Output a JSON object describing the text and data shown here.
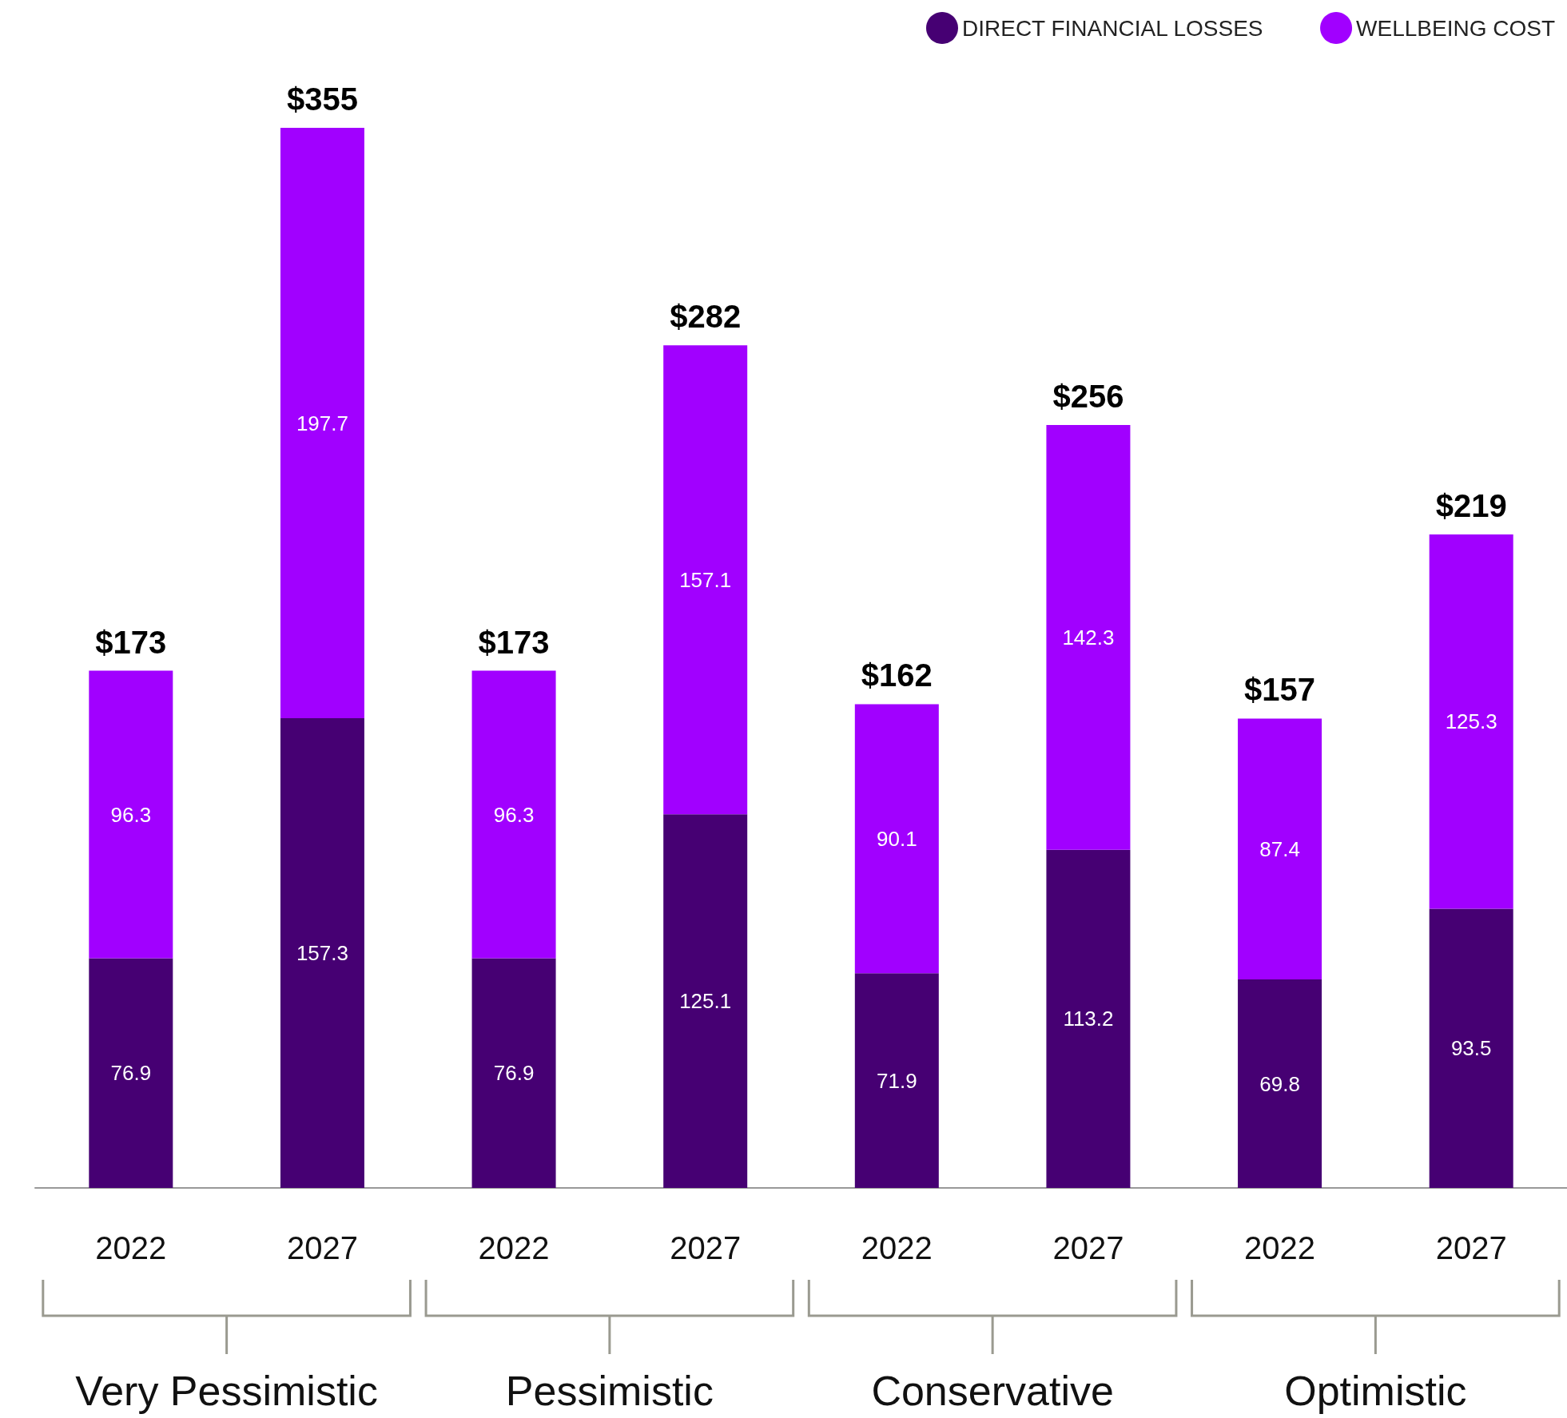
{
  "chart_data": {
    "type": "bar",
    "stacked": true,
    "categories": [
      "2022",
      "2027",
      "2022",
      "2027",
      "2022",
      "2027",
      "2022",
      "2027"
    ],
    "series": [
      {
        "name": "DIRECT FINANCIAL LOSSES",
        "color": "#460073",
        "values": [
          76.9,
          157.3,
          76.9,
          125.1,
          71.9,
          113.2,
          69.8,
          93.5
        ]
      },
      {
        "name": "WELLBEING COST",
        "color": "#a100ff",
        "values": [
          96.3,
          197.7,
          96.3,
          157.1,
          90.1,
          142.3,
          87.4,
          125.3
        ]
      }
    ],
    "data_labels": true,
    "totals": [
      "$173",
      "$355",
      "$173",
      "$282",
      "$162",
      "$256",
      "$157",
      "$219"
    ],
    "annotations": [
      "Very Pessimistic",
      "Pessimistic",
      "Conservative",
      "Optimistic"
    ],
    "legend": "top right",
    "grid": false
  }
}
